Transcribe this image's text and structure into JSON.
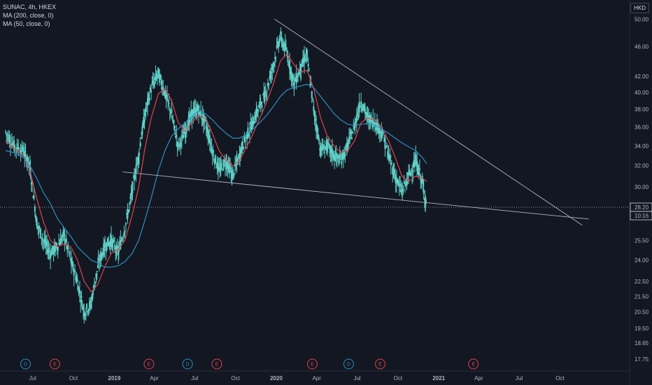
{
  "legend": {
    "symbol": "SUNAC, 4h, HKEX",
    "ma200": "MA (200, close, 0)",
    "ma50": "MA (50, close, 0)"
  },
  "currency": "HKD",
  "price_label": "28.20",
  "countdown": "10:16",
  "colors": {
    "background": "#131722",
    "candle": "#5fd0c6",
    "ma50": "#e0434d",
    "ma200": "#2d8ec4",
    "trendline": "#b2b5be",
    "earnings": "#e0434d",
    "dividend": "#2d8ec4"
  },
  "events": [
    {
      "type": "D",
      "x_label": "Jun 2018"
    },
    {
      "type": "E",
      "x_label": "Aug 2018"
    },
    {
      "type": "E",
      "x_label": "Mar 2019"
    },
    {
      "type": "D",
      "x_label": "Jun 2019"
    },
    {
      "type": "E",
      "x_label": "Aug 2019"
    },
    {
      "type": "E",
      "x_label": "Mar 2020"
    },
    {
      "type": "D",
      "x_label": "Jun 2020"
    },
    {
      "type": "E",
      "x_label": "Aug 2020"
    },
    {
      "type": "E",
      "x_label": "Mar 2021"
    }
  ],
  "chart_data": {
    "type": "line",
    "title": "SUNAC, 4h, HKEX",
    "currency": "HKD",
    "log_scale": true,
    "ylim": [
      17.2,
      53.0
    ],
    "y_ticks": [
      "50.00",
      "46.00",
      "42.00",
      "40.00",
      "38.00",
      "36.00",
      "34.00",
      "32.00",
      "30.00",
      "28.20",
      "25.50",
      "24.00",
      "22.50",
      "21.50",
      "20.50",
      "19.50",
      "18.65",
      "17.75"
    ],
    "x_ticks": [
      "Jul",
      "Oct",
      "2019",
      "Apr",
      "Jul",
      "Oct",
      "2020",
      "Apr",
      "Jul",
      "Oct",
      "2021",
      "Apr",
      "Jul",
      "Oct"
    ],
    "x_tick_dates": [
      "2018-07-01",
      "2018-10-01",
      "2019-01-01",
      "2019-04-01",
      "2019-07-01",
      "2019-10-01",
      "2020-01-01",
      "2020-04-01",
      "2020-07-01",
      "2020-10-01",
      "2021-01-01",
      "2021-04-01",
      "2021-07-01",
      "2021-10-01"
    ],
    "series": [
      {
        "name": "SUNAC",
        "type": "price",
        "x": [
          "2018-05-01",
          "2018-05-20",
          "2018-06-10",
          "2018-06-25",
          "2018-07-10",
          "2018-07-25",
          "2018-08-10",
          "2018-08-25",
          "2018-09-10",
          "2018-09-25",
          "2018-10-10",
          "2018-10-25",
          "2018-11-10",
          "2018-11-25",
          "2018-12-10",
          "2018-12-25",
          "2019-01-10",
          "2019-01-25",
          "2019-02-10",
          "2019-02-25",
          "2019-03-10",
          "2019-03-25",
          "2019-04-10",
          "2019-04-25",
          "2019-05-10",
          "2019-05-25",
          "2019-06-10",
          "2019-06-25",
          "2019-07-10",
          "2019-07-25",
          "2019-08-10",
          "2019-08-25",
          "2019-09-10",
          "2019-09-25",
          "2019-10-10",
          "2019-10-25",
          "2019-11-10",
          "2019-11-25",
          "2019-12-10",
          "2019-12-25",
          "2020-01-10",
          "2020-01-25",
          "2020-02-10",
          "2020-02-25",
          "2020-03-10",
          "2020-03-25",
          "2020-04-10",
          "2020-04-25",
          "2020-05-10",
          "2020-05-25",
          "2020-06-10",
          "2020-06-25",
          "2020-07-10",
          "2020-07-25",
          "2020-08-10",
          "2020-08-25",
          "2020-09-10",
          "2020-09-25",
          "2020-10-10",
          "2020-10-25",
          "2020-11-10",
          "2020-11-25",
          "2020-12-05"
        ],
        "values": [
          35.5,
          34.0,
          33.5,
          32.0,
          27.0,
          25.5,
          24.5,
          25.0,
          26.0,
          24.0,
          22.5,
          20.5,
          21.0,
          23.5,
          25.0,
          25.5,
          24.5,
          26.5,
          29.5,
          33.0,
          37.0,
          40.5,
          42.5,
          40.0,
          37.5,
          34.0,
          35.5,
          37.5,
          38.0,
          36.5,
          33.5,
          31.5,
          32.5,
          31.0,
          33.0,
          35.0,
          36.5,
          38.5,
          40.0,
          43.5,
          47.5,
          45.0,
          41.0,
          43.0,
          45.0,
          38.0,
          33.5,
          34.0,
          33.0,
          32.5,
          34.0,
          36.0,
          39.0,
          37.0,
          36.5,
          35.5,
          33.0,
          31.0,
          29.5,
          31.0,
          32.5,
          30.5,
          28.2
        ]
      },
      {
        "name": "MA (50, close, 0)",
        "values": [
          34.5,
          33.8,
          33.0,
          31.5,
          29.0,
          27.0,
          25.5,
          25.0,
          25.2,
          25.0,
          24.0,
          22.5,
          21.8,
          22.3,
          23.5,
          24.5,
          24.8,
          25.5,
          27.5,
          30.0,
          33.5,
          37.0,
          39.8,
          40.5,
          39.0,
          36.5,
          35.5,
          36.5,
          37.3,
          37.0,
          35.3,
          33.5,
          32.5,
          32.0,
          32.5,
          33.8,
          35.3,
          37.0,
          38.8,
          41.0,
          44.0,
          45.0,
          43.5,
          42.5,
          42.8,
          40.5,
          37.0,
          35.0,
          34.0,
          33.3,
          33.5,
          34.5,
          36.5,
          37.0,
          36.8,
          36.0,
          34.5,
          32.8,
          31.0,
          30.5,
          31.0,
          30.8,
          30.5
        ]
      },
      {
        "name": "MA (200, close, 0)",
        "values": [
          33.5,
          33.3,
          32.8,
          32.0,
          30.8,
          29.5,
          28.5,
          27.3,
          26.5,
          25.8,
          25.0,
          24.5,
          24.0,
          23.8,
          23.5,
          23.5,
          23.6,
          23.9,
          24.5,
          25.5,
          27.0,
          29.0,
          31.5,
          33.5,
          35.0,
          35.8,
          36.5,
          37.2,
          37.8,
          37.5,
          36.8,
          36.0,
          35.3,
          34.8,
          34.8,
          35.2,
          35.8,
          36.5,
          37.3,
          38.3,
          39.5,
          40.3,
          40.6,
          40.8,
          41.0,
          40.6,
          39.5,
          38.5,
          37.5,
          36.8,
          36.3,
          36.2,
          36.3,
          36.4,
          36.2,
          35.8,
          35.3,
          34.8,
          34.3,
          33.9,
          33.5,
          32.8,
          32.2
        ]
      }
    ],
    "trendlines": [
      {
        "name": "upper",
        "x": [
          "2019-12-28",
          "2021-11-20"
        ],
        "y": [
          50.0,
          26.7
        ]
      },
      {
        "name": "lower",
        "x": [
          "2019-01-20",
          "2021-12-05"
        ],
        "y": [
          31.4,
          27.2
        ]
      }
    ],
    "last_price": 28.2,
    "grid": false,
    "legend_position": "top-left"
  }
}
